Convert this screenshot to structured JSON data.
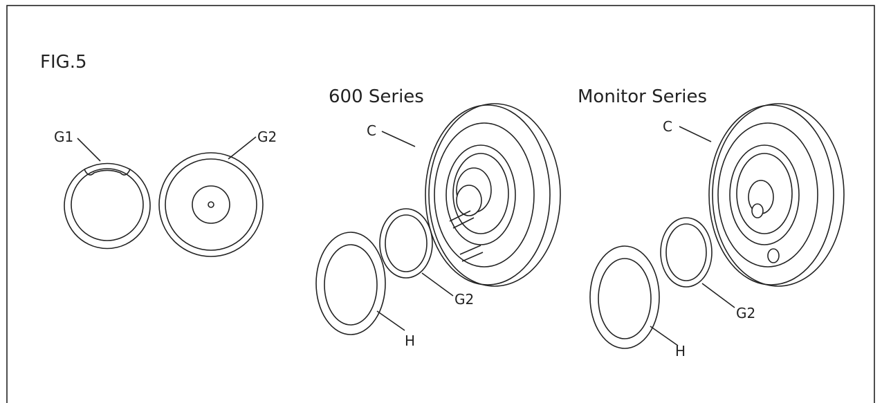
{
  "figure": {
    "label": "FIG.5"
  },
  "panels": [
    {
      "parts": [
        {
          "label": "G1"
        },
        {
          "label": "G2"
        }
      ]
    },
    {
      "title": "600 Series",
      "parts": [
        {
          "label": "C"
        },
        {
          "label": "G2"
        },
        {
          "label": "H"
        }
      ]
    },
    {
      "title": "Monitor Series",
      "parts": [
        {
          "label": "C"
        },
        {
          "label": "H"
        },
        {
          "label": "G2"
        }
      ]
    }
  ]
}
